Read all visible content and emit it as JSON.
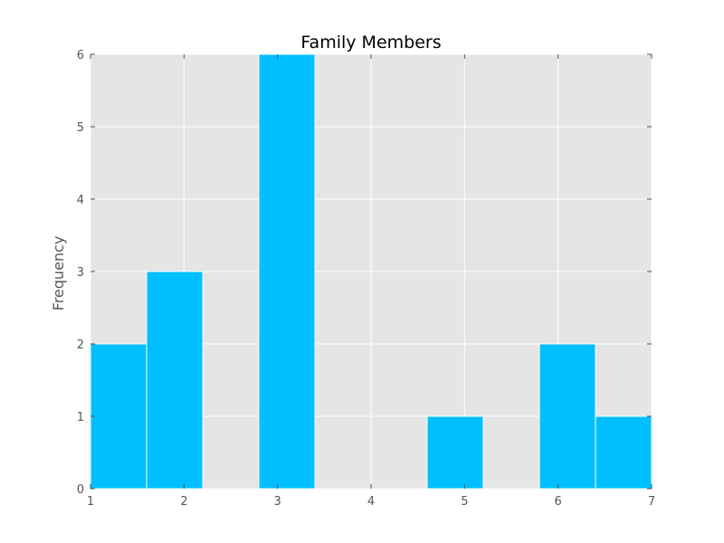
{
  "chart_data": {
    "type": "bar",
    "title": "Family Members",
    "xlabel": "",
    "ylabel": "Frequency",
    "xlim": [
      1,
      7
    ],
    "ylim": [
      0,
      6
    ],
    "xticks": [
      1,
      2,
      3,
      4,
      5,
      6,
      7
    ],
    "yticks": [
      0,
      1,
      2,
      3,
      4,
      5,
      6
    ],
    "bins": [
      {
        "start": 1.0,
        "end": 1.6,
        "count": 2
      },
      {
        "start": 1.6,
        "end": 2.2,
        "count": 3
      },
      {
        "start": 2.2,
        "end": 2.8,
        "count": 0
      },
      {
        "start": 2.8,
        "end": 3.4,
        "count": 6
      },
      {
        "start": 3.4,
        "end": 4.0,
        "count": 0
      },
      {
        "start": 4.0,
        "end": 4.6,
        "count": 0
      },
      {
        "start": 4.6,
        "end": 5.2,
        "count": 1
      },
      {
        "start": 5.2,
        "end": 5.8,
        "count": 0
      },
      {
        "start": 5.8,
        "end": 6.4,
        "count": 2
      },
      {
        "start": 6.4,
        "end": 7.0,
        "count": 1
      }
    ],
    "grid": true,
    "colors": {
      "bar": "#00bfff",
      "plot_background": "#e5e5e5",
      "grid": "#ffffff",
      "axis": "#555555"
    }
  }
}
